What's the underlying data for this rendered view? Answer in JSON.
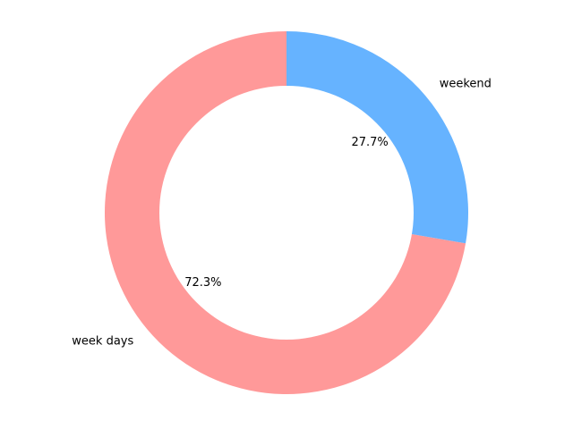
{
  "chart_data": {
    "type": "pie",
    "variant": "donut",
    "categories": [
      "week days",
      "weekend"
    ],
    "values": [
      72.3,
      27.7
    ],
    "value_labels": [
      "72.3%",
      "27.7%"
    ],
    "colors": [
      "#ff9999",
      "#66b3ff"
    ],
    "start_angle_deg": 90,
    "direction": "counterclockwise",
    "title": "",
    "legend": "none"
  }
}
